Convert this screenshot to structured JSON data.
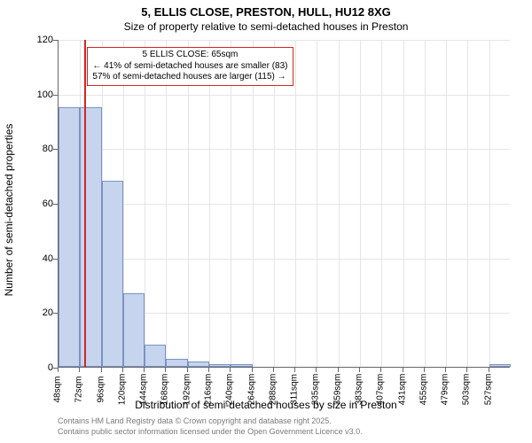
{
  "chart": {
    "type": "histogram",
    "title_main": "5, ELLIS CLOSE, PRESTON, HULL, HU12 8XG",
    "title_sub": "Size of property relative to semi-detached houses in Preston",
    "y_axis_label": "Number of semi-detached properties",
    "x_axis_label": "Distribution of semi-detached houses by size in Preston",
    "ylim": [
      0,
      120
    ],
    "y_ticks": [
      0,
      20,
      40,
      60,
      80,
      100,
      120
    ],
    "x_tick_labels": [
      "48sqm",
      "72sqm",
      "96sqm",
      "120sqm",
      "144sqm",
      "168sqm",
      "192sqm",
      "216sqm",
      "240sqm",
      "264sqm",
      "288sqm",
      "311sqm",
      "335sqm",
      "359sqm",
      "383sqm",
      "407sqm",
      "431sqm",
      "455sqm",
      "479sqm",
      "503sqm",
      "527sqm"
    ],
    "bars": [
      95,
      95,
      68,
      27,
      8,
      3,
      2,
      1,
      1,
      0,
      0,
      0,
      0,
      0,
      0,
      0,
      0,
      0,
      0,
      0,
      1
    ],
    "bar_fill": "#c6d4ed",
    "bar_border": "#7a93c4",
    "background_color": "#ffffff",
    "grid_color": "#e5e5e5",
    "marker_value_sqm": 65,
    "x_range_sqm": [
      36,
      539
    ],
    "marker_color": "#d22626",
    "annotation": {
      "line1": "5 ELLIS CLOSE: 65sqm",
      "line2": "← 41% of semi-detached houses are smaller (83)",
      "line3": "57% of semi-detached houses are larger (115) →",
      "border_color": "#d22626"
    },
    "footer_line1": "Contains HM Land Registry data © Crown copyright and database right 2025.",
    "footer_line2": "Contains public sector information licensed under the Open Government Licence v3.0.",
    "footer_color": "#7a7a7a",
    "title_fontsize": 13,
    "label_fontsize": 12,
    "tick_fontsize": 11
  }
}
